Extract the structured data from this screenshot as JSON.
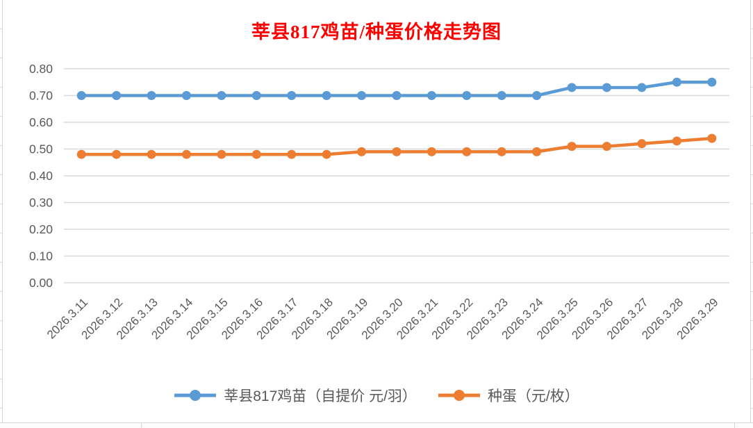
{
  "title": {
    "text": "莘县817鸡苗/种蛋价格走势图",
    "color": "#FF0000"
  },
  "legend": {
    "items": [
      {
        "label": "莘县817鸡苗（自提价 元/羽）",
        "color": "#5B9BD5"
      },
      {
        "label": "种蛋（元/枚）",
        "color": "#ED7D31"
      }
    ]
  },
  "chart_data": {
    "type": "line",
    "title": "莘县817鸡苗/种蛋价格走势图",
    "categories": [
      "2026.3.11",
      "2026.3.12",
      "2026.3.13",
      "2026.3.14",
      "2026.3.15",
      "2026.3.16",
      "2026.3.17",
      "2026.3.18",
      "2026.3.19",
      "2026.3.20",
      "2026.3.21",
      "2026.3.22",
      "2026.3.23",
      "2026.3.24",
      "2026.3.25",
      "2026.3.26",
      "2026.3.27",
      "2026.3.28",
      "2026.3.29"
    ],
    "series": [
      {
        "name": "莘县817鸡苗（自提价 元/羽）",
        "color": "#5B9BD5",
        "values": [
          0.7,
          0.7,
          0.7,
          0.7,
          0.7,
          0.7,
          0.7,
          0.7,
          0.7,
          0.7,
          0.7,
          0.7,
          0.7,
          0.7,
          0.73,
          0.73,
          0.73,
          0.75,
          0.75
        ]
      },
      {
        "name": "种蛋（元/枚）",
        "color": "#ED7D31",
        "values": [
          0.48,
          0.48,
          0.48,
          0.48,
          0.48,
          0.48,
          0.48,
          0.48,
          0.49,
          0.49,
          0.49,
          0.49,
          0.49,
          0.49,
          0.51,
          0.51,
          0.52,
          0.53,
          0.54
        ]
      }
    ],
    "ylim": [
      0,
      0.8
    ],
    "yticks": [
      "0.00",
      "0.10",
      "0.20",
      "0.30",
      "0.40",
      "0.50",
      "0.60",
      "0.70",
      "0.80"
    ],
    "grid": true,
    "legend_position": "bottom",
    "xlabel": "",
    "ylabel": "",
    "axis_text_color": "#595959",
    "gridline_color": "#D9D9D9"
  }
}
